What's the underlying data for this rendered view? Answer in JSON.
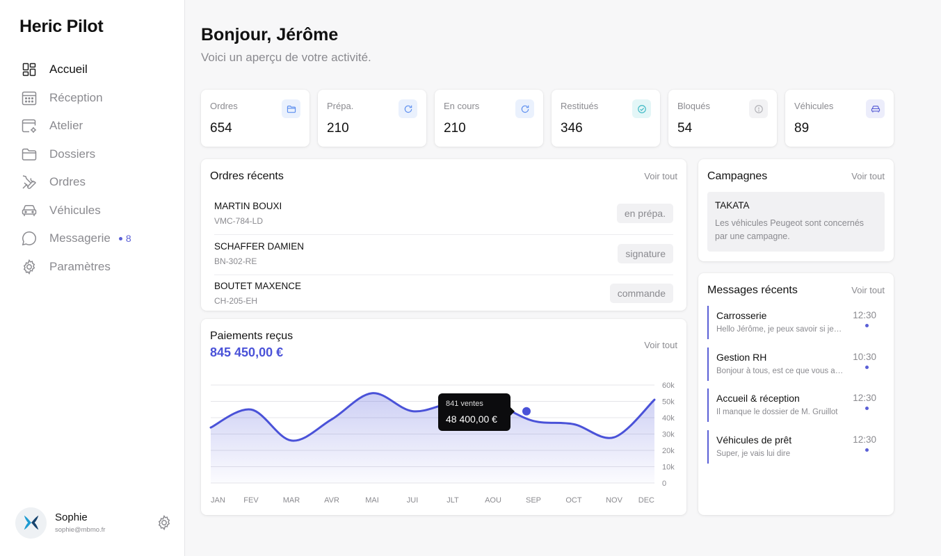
{
  "app": {
    "brand": "Heric Pilot"
  },
  "sidebar": {
    "items": [
      {
        "label": "Accueil",
        "icon": "dashboard-icon"
      },
      {
        "label": "Réception",
        "icon": "calendar-icon"
      },
      {
        "label": "Atelier",
        "icon": "workshop-icon"
      },
      {
        "label": "Dossiers",
        "icon": "folder-icon"
      },
      {
        "label": "Ordres",
        "icon": "tools-icon"
      },
      {
        "label": "Véhicules",
        "icon": "car-icon"
      },
      {
        "label": "Messagerie",
        "icon": "chat-icon",
        "badge": "8"
      },
      {
        "label": "Paramètres",
        "icon": "gear-icon"
      }
    ],
    "active": "Accueil",
    "user": {
      "name": "Sophie",
      "email": "sophie@mbmo.fr"
    }
  },
  "header": {
    "greeting": "Bonjour, Jérôme",
    "subtitle": "Voici un aperçu de votre activité."
  },
  "stats": [
    {
      "label": "Ordres",
      "value": "654",
      "icon": "folder-icon",
      "color": "#5b8def"
    },
    {
      "label": "Prépa.",
      "value": "210",
      "icon": "refresh-icon",
      "color": "#5b8def"
    },
    {
      "label": "En cours",
      "value": "210",
      "icon": "refresh-icon",
      "color": "#5b8def"
    },
    {
      "label": "Restitués",
      "value": "346",
      "icon": "check-circle-icon",
      "color": "#3bb8c4"
    },
    {
      "label": "Bloqués",
      "value": "54",
      "icon": "info-icon",
      "color": "#b0b0b5"
    },
    {
      "label": "Véhicules",
      "value": "89",
      "icon": "car-icon",
      "color": "#5a5fd6"
    }
  ],
  "orders": {
    "title": "Ordres récents",
    "see_all": "Voir tout",
    "rows": [
      {
        "name": "MARTIN BOUXI",
        "plate": "VMC-784-LD",
        "status": "en prépa."
      },
      {
        "name": "SCHAFFER DAMIEN",
        "plate": "BN-302-RE",
        "status": "signature"
      },
      {
        "name": "BOUTET MAXENCE",
        "plate": "CH-205-EH",
        "status": "commande"
      }
    ]
  },
  "campaigns": {
    "title": "Campagnes",
    "see_all": "Voir tout",
    "item": {
      "title": "TAKATA",
      "text": "Les véhicules Peugeot sont concernés par une campagne."
    }
  },
  "messages": {
    "title": "Messages récents",
    "see_all": "Voir tout",
    "items": [
      {
        "title": "Carrosserie",
        "text": "Hello Jérôme, je peux savoir si je dois",
        "time": "12:30"
      },
      {
        "title": "Gestion RH",
        "text": "Bonjour à tous, est ce que vous avez",
        "time": "10:30"
      },
      {
        "title": "Accueil & réception",
        "text": "Il manque le dossier de M. Gruillot",
        "time": "12:30"
      },
      {
        "title": "Véhicules de prêt",
        "text": "Super, je vais lui dire",
        "time": "12:30"
      }
    ]
  },
  "payments": {
    "title": "Paiements reçus",
    "total": "845 450,00 €",
    "see_all": "Voir tout",
    "tooltip": {
      "label": "841 ventes",
      "value": "48 400,00 €"
    }
  },
  "chart_data": {
    "type": "area",
    "categories": [
      "JAN",
      "FEV",
      "MAR",
      "AVR",
      "MAI",
      "JUI",
      "JLT",
      "AOU",
      "SEP",
      "OCT",
      "NOV",
      "DEC"
    ],
    "y_ticks": [
      "0",
      "10k",
      "20k",
      "30k",
      "40k",
      "50k",
      "60k"
    ],
    "ylim": [
      0,
      60000
    ],
    "values": [
      34000,
      45000,
      26000,
      39000,
      55000,
      44000,
      49000,
      48400,
      38000,
      36000,
      28000,
      51000
    ],
    "highlight_index": 8,
    "color": "#4a52d8",
    "grid": true
  }
}
